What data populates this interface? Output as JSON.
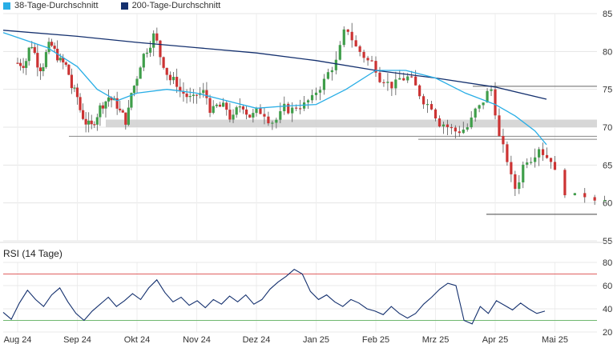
{
  "legend": {
    "ma38_label": "38-Tage-Durchschnitt",
    "ma200_label": "200-Tage-Durchschnitt",
    "ma38_color": "#29aee6",
    "ma200_color": "#14306e"
  },
  "rsi_panel": {
    "title": "RSI (14 Tage)",
    "line_color": "#14306e",
    "upper_line_color": "#e06060",
    "lower_line_color": "#70b870"
  },
  "candle_colors": {
    "up": "#3f9e4a",
    "down": "#cc3333"
  },
  "chart_data": [
    {
      "type": "candlestick",
      "title": "",
      "ylim": [
        55,
        85
      ],
      "y_ticks": [
        55,
        60,
        65,
        70,
        75,
        80,
        85
      ],
      "x_ticks": [
        "Aug 24",
        "Sep 24",
        "Okt 24",
        "Nov 24",
        "Dez 24",
        "Jan 25",
        "Feb 25",
        "Mrz 25",
        "Apr 25",
        "Mai 25"
      ],
      "grid": true,
      "legend_position": "top-left",
      "close_points": [
        [
          "Aug 24",
          78.5
        ],
        [
          "Aug 24",
          81.0
        ],
        [
          "Aug 24",
          78.0
        ],
        [
          "Aug 24",
          80.5
        ],
        [
          "Aug 24",
          79.5
        ],
        [
          "Aug 24",
          78.0
        ],
        [
          "Aug 24",
          74.5
        ],
        [
          "Sep 24",
          71.5
        ],
        [
          "Sep 24",
          70.0
        ],
        [
          "Sep 24",
          72.5
        ],
        [
          "Sep 24",
          74.0
        ],
        [
          "Sep 24",
          73.0
        ],
        [
          "Sep 24",
          71.0
        ],
        [
          "Sep 24",
          75.5
        ],
        [
          "Okt 24",
          79.5
        ],
        [
          "Okt 24",
          82.0
        ],
        [
          "Okt 24",
          78.5
        ],
        [
          "Okt 24",
          76.0
        ],
        [
          "Okt 24",
          74.5
        ],
        [
          "Okt 24",
          73.5
        ],
        [
          "Nov 24",
          74.5
        ],
        [
          "Nov 24",
          72.0
        ],
        [
          "Nov 24",
          72.5
        ],
        [
          "Nov 24",
          71.0
        ],
        [
          "Nov 24",
          73.0
        ],
        [
          "Nov 24",
          71.5
        ],
        [
          "Dez 24",
          72.0
        ],
        [
          "Dez 24",
          71.0
        ],
        [
          "Dez 24",
          72.5
        ],
        [
          "Dez 24",
          73.0
        ],
        [
          "Dez 24",
          73.5
        ],
        [
          "Jan 25",
          76.0
        ],
        [
          "Jan 25",
          78.5
        ],
        [
          "Jan 25",
          83.0
        ],
        [
          "Jan 25",
          80.0
        ],
        [
          "Jan 25",
          78.5
        ],
        [
          "Feb 25",
          76.5
        ],
        [
          "Feb 25",
          75.5
        ],
        [
          "Feb 25",
          76.5
        ],
        [
          "Feb 25",
          74.5
        ],
        [
          "Feb 25",
          73.0
        ],
        [
          "Mrz 25",
          70.5
        ],
        [
          "Mrz 25",
          69.5
        ],
        [
          "Mrz 25",
          70.0
        ],
        [
          "Mrz 25",
          72.5
        ],
        [
          "Mrz 25",
          75.0
        ],
        [
          "Apr 25",
          67.0
        ],
        [
          "Apr 25",
          62.0
        ],
        [
          "Apr 25",
          66.0
        ],
        [
          "Apr 25",
          67.5
        ],
        [
          "Apr 25",
          66.0
        ],
        [
          "Mai 25",
          60.5
        ],
        [
          "Mai 25",
          61.0
        ]
      ],
      "ma38": [
        [
          "Aug 24",
          82.5
        ],
        [
          "Aug 24",
          80.5
        ],
        [
          "Sep 24",
          78.0
        ],
        [
          "Sep 24",
          75.0
        ],
        [
          "Sep 24",
          73.5
        ],
        [
          "Okt 24",
          74.5
        ],
        [
          "Okt 24",
          75.0
        ],
        [
          "Nov 24",
          74.5
        ],
        [
          "Nov 24",
          73.5
        ],
        [
          "Dez 24",
          72.5
        ],
        [
          "Dez 24",
          72.8
        ],
        [
          "Jan 25",
          73.0
        ],
        [
          "Jan 25",
          75.0
        ],
        [
          "Feb 25",
          77.5
        ],
        [
          "Feb 25",
          77.5
        ],
        [
          "Mrz 25",
          76.5
        ],
        [
          "Mrz 25",
          74.5
        ],
        [
          "Apr 25",
          73.0
        ],
        [
          "Apr 25",
          71.5
        ],
        [
          "Apr 25",
          69.5
        ],
        [
          "Mai 25",
          67.7
        ]
      ],
      "ma200": [
        [
          "Aug 24",
          82.8
        ],
        [
          "Sep 24",
          82.0
        ],
        [
          "Okt 24",
          81.2
        ],
        [
          "Nov 24",
          80.5
        ],
        [
          "Dez 24",
          79.8
        ],
        [
          "Jan 25",
          78.8
        ],
        [
          "Feb 25",
          77.5
        ],
        [
          "Mrz 25",
          76.5
        ],
        [
          "Apr 25",
          75.3
        ],
        [
          "Mai 25",
          73.7
        ]
      ],
      "horizontal_lines": [
        68.8,
        68.4,
        75.4,
        58.5
      ],
      "zones": [
        [
          70.0,
          71.0
        ]
      ]
    },
    {
      "type": "line",
      "title": "RSI (14 Tage)",
      "ylim": [
        20,
        80
      ],
      "y_ticks": [
        20,
        40,
        60,
        80
      ],
      "x_ticks": [
        "Aug 24",
        "Sep 24",
        "Okt 24",
        "Nov 24",
        "Dez 24",
        "Jan 25",
        "Feb 25",
        "Mrz 25",
        "Apr 25",
        "Mai 25"
      ],
      "reference_lines": [
        70,
        30
      ],
      "series": [
        {
          "values": [
            37,
            31,
            45,
            56,
            48,
            42,
            52,
            58,
            46,
            36,
            30,
            38,
            44,
            50,
            42,
            47,
            53,
            48,
            58,
            65,
            54,
            46,
            50,
            43,
            47,
            41,
            48,
            44,
            51,
            46,
            52,
            44,
            48,
            57,
            63,
            68,
            74,
            70,
            55,
            48,
            52,
            46,
            42,
            48,
            45,
            40,
            38,
            35,
            42,
            36,
            32,
            36,
            44,
            50,
            57,
            62,
            60,
            30,
            27,
            42,
            36,
            47,
            43,
            39,
            45,
            40,
            36,
            38
          ]
        }
      ]
    }
  ]
}
